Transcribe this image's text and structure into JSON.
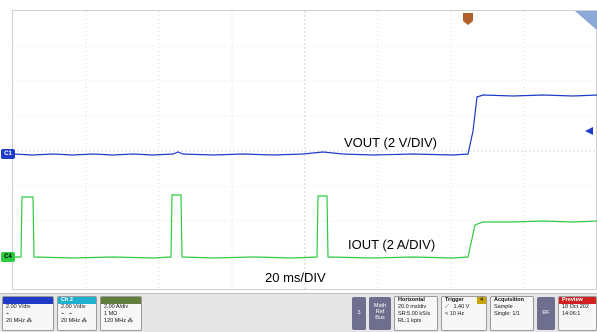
{
  "annotations": {
    "vout_label": "VOUT (2 V/DIV)",
    "iout_label": "IOUT (2 A/DIV)",
    "time_label": "20 ms/DIV"
  },
  "markers": {
    "ch1": "C1",
    "ch4": "C4"
  },
  "colors": {
    "ch1": "#1e3cc8",
    "ch4": "#2ecc40",
    "ch2_header": "#20b0d0",
    "ch4_header": "#607d3b",
    "preview": "#d02020"
  },
  "traces": {
    "ch1_description": "VOUT steps from low to high",
    "ch4_description": "IOUT pulses then step"
  },
  "status": {
    "ch1": {
      "scale": "2.00 V/div",
      "coupling": "⌁",
      "bw": "20 MHz ⁂"
    },
    "ch2": {
      "label": "Ch 2",
      "scale": "2.00 V/div",
      "coupling": "⌁",
      "impedance": "⌁",
      "bw": "20 MHz ⁂"
    },
    "ch4": {
      "label": "",
      "scale": "2.00 A/div",
      "impedance": "1 MΩ",
      "bw": "120 MHz ⁂"
    },
    "btn3": "3",
    "math": {
      "line1": "Math",
      "line2": "Ref",
      "line3": "Bus"
    },
    "horizontal": {
      "title": "Horizontal",
      "scale": "20.0 ms/div",
      "sr": "SR:5.00 kS/s",
      "rl": "RL:1 kpts"
    },
    "trigger": {
      "title": "Trigger",
      "badge": "4",
      "level": "1.40 V",
      "freq": "< 10 Hz",
      "slope": "⟋"
    },
    "acquisition": {
      "title": "Acquisition",
      "mode": "Sample",
      "single": "Single: 1/1"
    },
    "rf": "RF",
    "preview": {
      "label": "Preview",
      "date": "18 Oct 202",
      "time": "14:06:1"
    }
  }
}
